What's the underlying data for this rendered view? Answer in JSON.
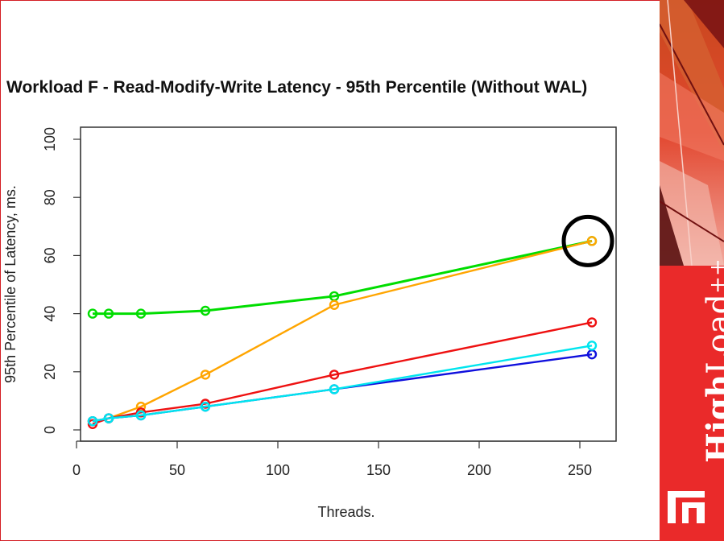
{
  "chart_data": {
    "type": "line",
    "title": "Workload F - Read-Modify-Write Latency - 95th Percentile (Without WAL)",
    "xlabel": "Threads.",
    "ylabel": "95th Percentile of Latency, ms.",
    "xlim": [
      0,
      260
    ],
    "ylim": [
      0,
      100
    ],
    "xticks": [
      0,
      50,
      100,
      150,
      200,
      250
    ],
    "yticks": [
      0,
      20,
      40,
      60,
      80,
      100
    ],
    "grid": false,
    "x": [
      8,
      16,
      32,
      64,
      128,
      256
    ],
    "series": [
      {
        "color": "#00dd00",
        "values": [
          40,
          40,
          40,
          41,
          46,
          65
        ]
      },
      {
        "color": "#ffa500",
        "values": [
          3,
          4,
          8,
          19,
          43,
          65
        ]
      },
      {
        "color": "#ee1111",
        "values": [
          2,
          4,
          6,
          9,
          19,
          37
        ]
      },
      {
        "color": "#1010dd",
        "values": [
          3,
          4,
          5,
          8,
          14,
          26
        ]
      },
      {
        "color": "#00e5ee",
        "values": [
          3,
          4,
          5,
          8,
          14,
          29
        ]
      }
    ],
    "annotations": [
      {
        "type": "circle",
        "x": 254,
        "y": 65,
        "color": "#000000"
      }
    ]
  },
  "branding": {
    "name_bold": "High",
    "name_regular": "Load",
    "superscript": "++",
    "accent": "#ea2a2a"
  }
}
